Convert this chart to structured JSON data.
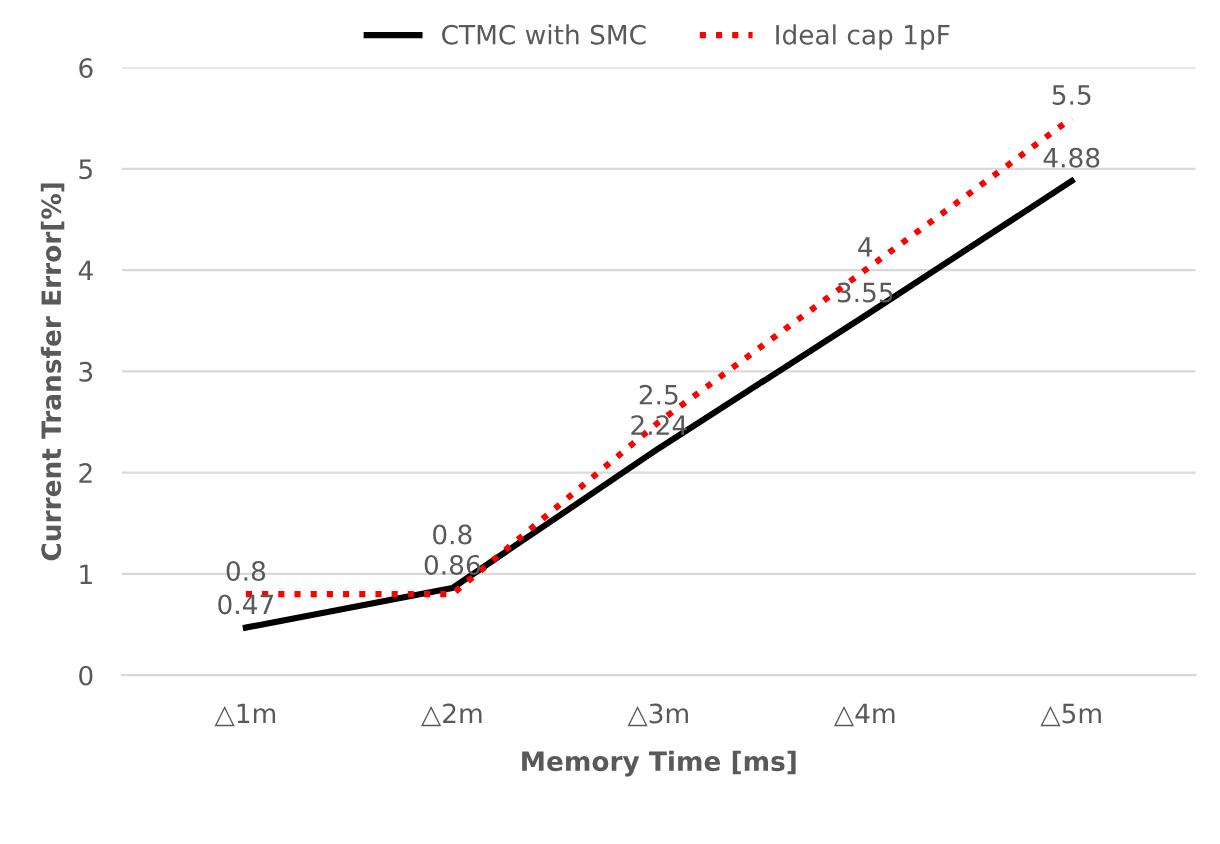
{
  "chart_data": {
    "type": "line",
    "xlabel": "Memory Time [ms]",
    "ylabel": "Current Transfer Error[%]",
    "categories": [
      "△1m",
      "△2m",
      "△3m",
      "△4m",
      "△5m"
    ],
    "series": [
      {
        "name": "CTMC with SMC",
        "color": "#000000",
        "line_style": "solid",
        "values": [
          0.47,
          0.86,
          2.24,
          3.55,
          4.88
        ]
      },
      {
        "name": "Ideal cap 1pF",
        "color": "#ff0000",
        "line_style": "dotted",
        "values": [
          0.8,
          0.8,
          2.5,
          4,
          5.5
        ]
      }
    ],
    "ylim": [
      0,
      6
    ],
    "yticks": [
      0,
      1,
      2,
      3,
      4,
      5,
      6
    ],
    "grid": "y",
    "legend": "top",
    "data_labels": true,
    "marker": "none"
  }
}
